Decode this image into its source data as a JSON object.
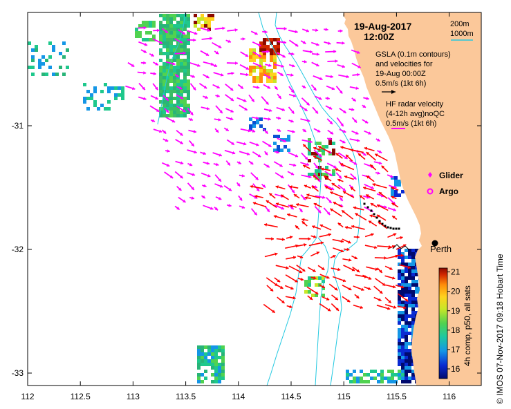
{
  "map": {
    "lon_ticks": [
      "112",
      "112.5",
      "113",
      "113.5",
      "114",
      "114.5",
      "115",
      "115.5",
      "116"
    ],
    "lat_ticks": [
      "-31",
      "-32",
      "-33"
    ]
  },
  "title": {
    "date": "19-Aug-2017",
    "time": "12:00Z"
  },
  "contours_legend": {
    "shallow": "200m",
    "deep": "1000m"
  },
  "gsla_legend": {
    "line1": "GSLA (0.1m contours)",
    "line2": "and velocities for",
    "line3": "19-Aug 00:00Z",
    "line4": "0.5m/s (1kt 6h)"
  },
  "hf_legend": {
    "line1": "HF radar velocity",
    "line2": "(4-12h avg)noQC",
    "line3": "0.5m/s (1kt 6h)"
  },
  "markers": {
    "glider": "Glider",
    "argo": "Argo"
  },
  "city": {
    "name": "Perth"
  },
  "colorbar": {
    "ticks": [
      "21",
      "20",
      "19",
      "18",
      "17",
      "16"
    ],
    "label": "4h comp, p50, all sats",
    "min": 15.5,
    "max": 21.2
  },
  "credit": "© IMOS 07-Nov-2017 09:18 Hobart Time",
  "colors": {
    "land": "#FBC89A",
    "contour": "#22C8E0",
    "hf_arrow": "#FF00FF",
    "gsla_arrow": "#FF0000",
    "glider": "#000000"
  }
}
